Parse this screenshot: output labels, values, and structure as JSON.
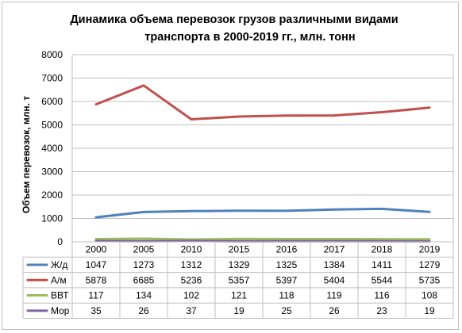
{
  "chart_data": {
    "type": "line",
    "title": [
      "Динамика объема перевозок грузов различными видами",
      "транспорта в 2000-2019 гг., млн. тонн"
    ],
    "ylabel": "Объем перевозок, млн. т",
    "xlabel": "",
    "categories": [
      "2000",
      "2005",
      "2010",
      "2015",
      "2016",
      "2017",
      "2018",
      "2019"
    ],
    "ylim": [
      0,
      8000
    ],
    "yticks": [
      0,
      1000,
      2000,
      3000,
      4000,
      5000,
      6000,
      7000,
      8000
    ],
    "grid": true,
    "legend": "data-table",
    "series": [
      {
        "name": "Ж/д",
        "color": "#4F81BD",
        "values": [
          1047,
          1273,
          1312,
          1329,
          1325,
          1384,
          1411,
          1279
        ]
      },
      {
        "name": "А/м",
        "color": "#C0504D",
        "values": [
          5878,
          6685,
          5236,
          5357,
          5397,
          5404,
          5544,
          5735
        ]
      },
      {
        "name": "ВВТ",
        "color": "#9BBB59",
        "values": [
          117,
          134,
          102,
          121,
          118,
          119,
          116,
          108
        ]
      },
      {
        "name": "Мор",
        "color": "#8064A2",
        "values": [
          35,
          26,
          37,
          19,
          25,
          26,
          23,
          19
        ]
      }
    ]
  }
}
